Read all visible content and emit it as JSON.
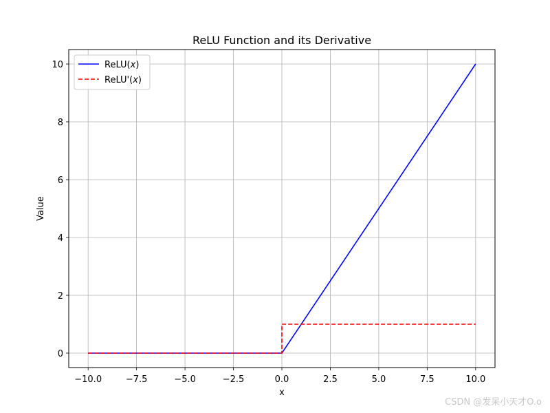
{
  "chart_data": {
    "type": "line",
    "title": "ReLU Function and its Derivative",
    "xlabel": "x",
    "ylabel": "Value",
    "xlim": [
      -11.0,
      11.0
    ],
    "ylim": [
      -0.5,
      10.5
    ],
    "xticks": [
      -10.0,
      -7.5,
      -5.0,
      -2.5,
      0.0,
      2.5,
      5.0,
      7.5,
      10.0
    ],
    "xtick_labels": [
      "−10.0",
      "−7.5",
      "−5.0",
      "−2.5",
      "0.0",
      "2.5",
      "5.0",
      "7.5",
      "10.0"
    ],
    "yticks": [
      0,
      2,
      4,
      6,
      8,
      10
    ],
    "ytick_labels": [
      "0",
      "2",
      "4",
      "6",
      "8",
      "10"
    ],
    "grid": true,
    "legend_position": "top-left",
    "series": [
      {
        "name": "ReLU(x)",
        "name_base": "ReLU(",
        "name_var": "x",
        "name_close": ")",
        "color": "#0000ff",
        "style": "solid",
        "x": [
          -10,
          0,
          10
        ],
        "y": [
          0,
          0,
          10
        ]
      },
      {
        "name": "ReLU'(x)",
        "name_base": "ReLU'(",
        "name_var": "x",
        "name_close": ")",
        "color": "#ff0000",
        "style": "dashed",
        "x": [
          -10,
          0,
          0,
          10
        ],
        "y": [
          0,
          0,
          1,
          1
        ]
      }
    ]
  },
  "watermark": "CSDN @发呆小天才O.o"
}
